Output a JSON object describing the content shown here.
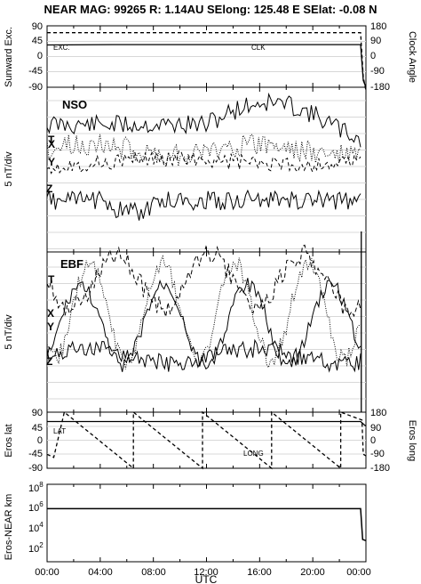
{
  "title": "NEAR MAG: 99265  R: 1.14AU  SElong: 125.48 E  SElat:  -0.08 N",
  "xaxis": {
    "label": "UTC",
    "ticks": [
      "00:00",
      "04:00",
      "08:00",
      "12:00",
      "16:00",
      "20:00",
      "00:00"
    ],
    "range_hours": [
      0,
      24
    ]
  },
  "chart_data": [
    {
      "type": "line",
      "panel": "sunward",
      "ylabel_left": "Sunward Exc.",
      "ylabel_right": "Clock Angle",
      "left_ticks": [
        "90",
        "45",
        "0",
        "-45",
        "-90"
      ],
      "right_ticks": [
        "180",
        "90",
        "0",
        "-90",
        "-180"
      ],
      "ylim_left": [
        -90,
        90
      ],
      "ylim_right": [
        -180,
        180
      ],
      "labels": [
        "EXC.",
        "CLK"
      ],
      "series": [
        {
          "name": "EXC.",
          "style": "solid",
          "x": [
            0,
            5,
            10,
            15,
            20,
            23.6,
            23.8,
            24
          ],
          "y": [
            34,
            35,
            35,
            35,
            35,
            35,
            -70,
            -90
          ]
        },
        {
          "name": "CLK",
          "style": "dashed",
          "x": [
            0,
            5,
            10,
            15,
            20,
            23.6,
            23.8,
            24
          ],
          "y": [
            70,
            70,
            70,
            70,
            70,
            70,
            -60,
            -100
          ]
        }
      ]
    },
    {
      "type": "line",
      "panel": "nso",
      "panel_label": "NSO",
      "ylabel": "5 nT/div",
      "components": [
        "T",
        "X",
        "Y",
        "Z"
      ],
      "units_per_div": 5
    },
    {
      "type": "line",
      "panel": "ebf",
      "panel_label": "EBF",
      "ylabel": "5 nT/div",
      "components": [
        "T",
        "X",
        "Y",
        "Z"
      ],
      "units_per_div": 5
    },
    {
      "type": "line",
      "panel": "eros",
      "ylabel_left": "Eros lat",
      "ylabel_right": "Eros long",
      "left_ticks": [
        "90",
        "45",
        "0",
        "-45",
        "-90"
      ],
      "right_ticks": [
        "180",
        "90",
        "0",
        "-90",
        "-180"
      ],
      "ylim_left": [
        -90,
        90
      ],
      "ylim_right": [
        -180,
        180
      ],
      "labels": [
        "LAT",
        "LONG"
      ],
      "series": [
        {
          "name": "LAT",
          "style": "solid",
          "x": [
            0,
            23.6,
            24
          ],
          "y": [
            60,
            60,
            45
          ]
        },
        {
          "name": "LONG",
          "style": "dashed",
          "x": [
            0,
            0.5,
            1.3,
            6.5,
            6.5,
            11.7,
            11.7,
            16.9,
            16.9,
            22.1,
            22.1,
            23.7,
            23.8,
            24
          ],
          "y": [
            -90,
            -110,
            180,
            -180,
            180,
            -180,
            180,
            -180,
            180,
            -180,
            180,
            130,
            -90,
            -100
          ]
        }
      ]
    },
    {
      "type": "line",
      "panel": "distance",
      "ylabel": "Eros-NEAR km",
      "yscale": "log",
      "ticks": [
        "10^8",
        "10^6",
        "10^4",
        "10^2"
      ],
      "ylim": [
        1,
        100000000
      ],
      "series": [
        {
          "name": "",
          "style": "solid",
          "x": [
            0,
            23.6,
            23.75,
            24
          ],
          "y": [
            300000,
            300000,
            200,
            150
          ]
        }
      ]
    }
  ]
}
